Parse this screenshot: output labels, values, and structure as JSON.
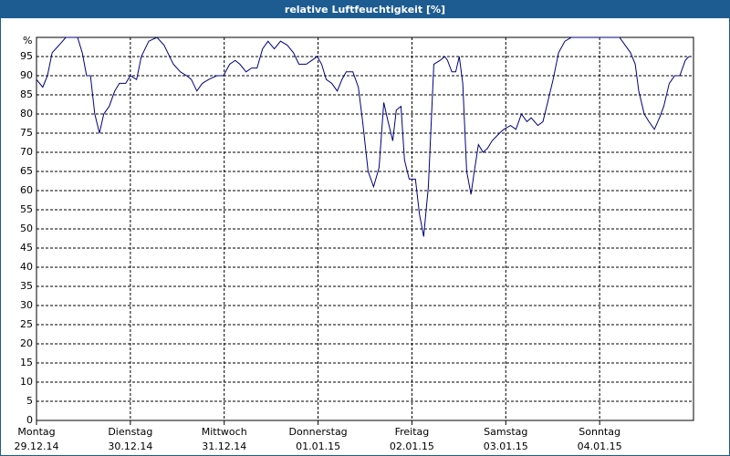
{
  "chart_data": {
    "type": "line",
    "title": "relative Luftfeuchtigkeit [%]",
    "ylabel": "%",
    "ylim": [
      0,
      100
    ],
    "yticks": [
      0,
      5,
      10,
      15,
      20,
      25,
      30,
      35,
      40,
      45,
      50,
      55,
      60,
      65,
      70,
      75,
      80,
      85,
      90,
      95
    ],
    "xlim": [
      0,
      168
    ],
    "xticks": [
      {
        "value": 0,
        "label": "Montag",
        "date": "29.12.14"
      },
      {
        "value": 24,
        "label": "Dienstag",
        "date": "30.12.14"
      },
      {
        "value": 48,
        "label": "Mittwoch",
        "date": "31.12.14"
      },
      {
        "value": 72,
        "label": "Donnerstag",
        "date": "01.01.15"
      },
      {
        "value": 96,
        "label": "Freitag",
        "date": "02.01.15"
      },
      {
        "value": 120,
        "label": "Samstag",
        "date": "03.01.15"
      },
      {
        "value": 144,
        "label": "Sonntag",
        "date": "04.01.15"
      }
    ],
    "grid": true,
    "series": [
      {
        "color": "#000080",
        "x": [
          0,
          1.6,
          2.8,
          4.0,
          5.8,
          7.5,
          10.5,
          11.7,
          12.8,
          13.8,
          14.9,
          16.1,
          17.2,
          18.6,
          20.0,
          21.2,
          22.8,
          24.0,
          25.6,
          26.8,
          28.7,
          30.8,
          32.6,
          35.0,
          36.8,
          38.4,
          39.6,
          41.0,
          42.4,
          44.0,
          46.1,
          47.8,
          49.4,
          50.8,
          52.0,
          53.6,
          55.0,
          56.4,
          57.8,
          59.2,
          60.8,
          62.4,
          64.1,
          65.7,
          67.1,
          69.0,
          70.4,
          71.8,
          72.9,
          74.1,
          75.5,
          76.9,
          78.1,
          79.2,
          80.9,
          82.3,
          83.4,
          84.8,
          86.2,
          87.6,
          88.8,
          89.9,
          91.1,
          92.0,
          93.2,
          94.1,
          95.3,
          96.9,
          97.9,
          99.0,
          100.2,
          101.6,
          103.2,
          104.4,
          105.1,
          106.2,
          107.2,
          108.1,
          109.0,
          110.0,
          111.1,
          111.8,
          113.0,
          114.2,
          115.3,
          116.5,
          118.4,
          119.5,
          121.2,
          122.6,
          124.0,
          125.4,
          126.5,
          128.2,
          129.5,
          130.7,
          132.1,
          133.5,
          135.1,
          136.8,
          138.9,
          144.5,
          149.1,
          150.5,
          151.9,
          153.1,
          154.0,
          155.4,
          156.6,
          158.0,
          159.3,
          160.4,
          161.8,
          163.2,
          164.5,
          165.9,
          166.8
        ],
        "values": [
          89,
          87,
          90,
          96,
          98,
          100,
          100,
          96,
          90,
          90,
          80,
          75,
          80,
          82,
          86,
          88,
          88,
          90,
          89,
          95,
          99,
          100,
          98,
          93,
          91,
          90,
          89,
          86,
          88,
          89,
          90,
          90,
          93,
          94,
          93,
          91,
          92,
          92,
          97,
          99,
          97,
          99,
          98,
          96,
          93,
          93,
          94,
          95,
          93,
          89,
          88,
          86,
          89,
          91,
          91,
          87,
          78,
          65,
          61,
          66,
          83,
          78,
          73,
          81,
          82,
          68,
          63,
          63,
          54,
          48,
          61,
          93,
          94,
          95,
          94,
          91,
          91,
          95,
          88,
          65,
          59,
          64,
          72,
          70,
          71,
          73,
          75,
          76,
          77,
          76,
          80,
          78,
          79,
          77,
          78,
          83,
          89,
          96,
          99,
          100,
          100,
          100,
          100,
          98,
          96,
          93,
          86,
          80,
          78,
          76,
          79,
          82,
          88,
          90,
          90,
          94,
          95
        ]
      }
    ]
  }
}
